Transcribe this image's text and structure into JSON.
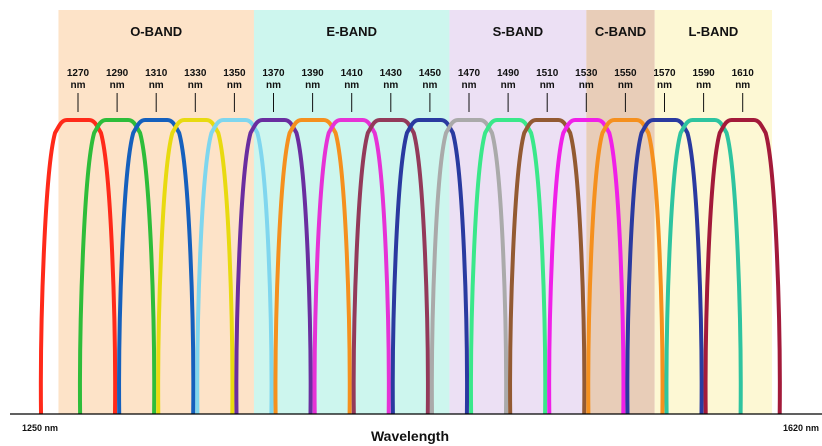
{
  "chart_data": {
    "type": "diagram",
    "title": "",
    "xlabel": "Wavelength",
    "x_range": [
      1250,
      1620
    ],
    "x_start_label": "1250 nm",
    "x_end_label": "1620 nm",
    "unit": "nm",
    "bands": [
      {
        "name": "O-BAND",
        "start": 1260,
        "end": 1360,
        "color": "#fde3c8"
      },
      {
        "name": "E-BAND",
        "start": 1360,
        "end": 1460,
        "color": "#cdf6ee"
      },
      {
        "name": "S-BAND",
        "start": 1460,
        "end": 1530,
        "color": "#ece0f4"
      },
      {
        "name": "C-BAND",
        "start": 1530,
        "end": 1565,
        "color": "#e8cdb8"
      },
      {
        "name": "L-BAND",
        "start": 1565,
        "end": 1625,
        "color": "#fdf8d4"
      }
    ],
    "channels": [
      {
        "wavelength": 1270,
        "label": "1270",
        "unit": "nm",
        "color": "#ff2a1a"
      },
      {
        "wavelength": 1290,
        "label": "1290",
        "unit": "nm",
        "color": "#2ebd3a"
      },
      {
        "wavelength": 1310,
        "label": "1310",
        "unit": "nm",
        "color": "#1560bd"
      },
      {
        "wavelength": 1330,
        "label": "1330",
        "unit": "nm",
        "color": "#e8da10"
      },
      {
        "wavelength": 1350,
        "label": "1350",
        "unit": "nm",
        "color": "#7fd6ee"
      },
      {
        "wavelength": 1370,
        "label": "1370",
        "unit": "nm",
        "color": "#6a2ea0"
      },
      {
        "wavelength": 1390,
        "label": "1390",
        "unit": "nm",
        "color": "#f5901e"
      },
      {
        "wavelength": 1410,
        "label": "1410",
        "unit": "nm",
        "color": "#e632d6"
      },
      {
        "wavelength": 1430,
        "label": "1430",
        "unit": "nm",
        "color": "#933a5a"
      },
      {
        "wavelength": 1450,
        "label": "1450",
        "unit": "nm",
        "color": "#2a3aa0"
      },
      {
        "wavelength": 1470,
        "label": "1470",
        "unit": "nm",
        "color": "#aaaaaa"
      },
      {
        "wavelength": 1490,
        "label": "1490",
        "unit": "nm",
        "color": "#3ae88a"
      },
      {
        "wavelength": 1510,
        "label": "1510",
        "unit": "nm",
        "color": "#935a32"
      },
      {
        "wavelength": 1530,
        "label": "1530",
        "unit": "nm",
        "color": "#f020e8"
      },
      {
        "wavelength": 1550,
        "label": "1550",
        "unit": "nm",
        "color": "#f5901e"
      },
      {
        "wavelength": 1570,
        "label": "1570",
        "unit": "nm",
        "color": "#2a3aa0"
      },
      {
        "wavelength": 1590,
        "label": "1590",
        "unit": "nm",
        "color": "#2ec4a0"
      },
      {
        "wavelength": 1610,
        "label": "1610",
        "unit": "nm",
        "color": "#a31a3a"
      }
    ]
  }
}
